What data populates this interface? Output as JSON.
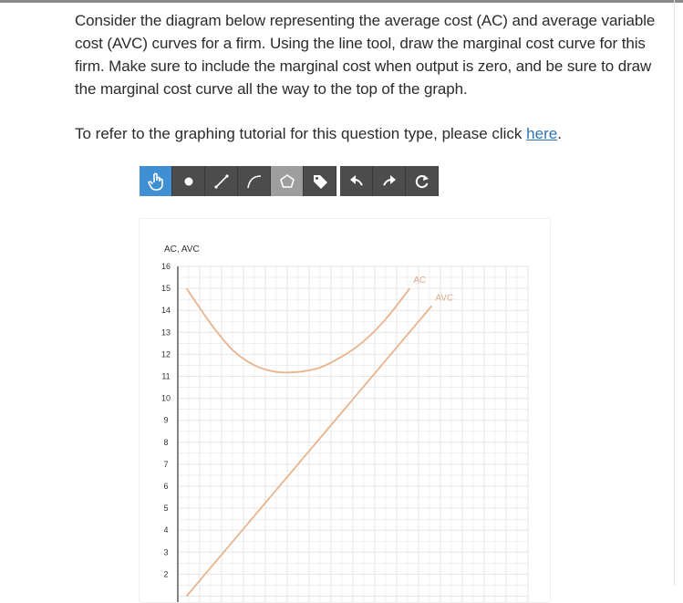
{
  "question": {
    "text": "Consider the diagram below representing the average cost (AC) and average variable cost (AVC) curves for a firm. Using the line tool, draw the marginal cost curve for this firm. Make sure to include the marginal cost when output is zero, and be sure to draw the marginal cost curve all the way to the top of the graph."
  },
  "tutorial": {
    "prefix": "To refer to the graphing tutorial for this question type, please click ",
    "link_text": "here",
    "suffix": "."
  },
  "toolbar": {
    "tools": [
      {
        "name": "pointer-tool",
        "icon": "hand-pointer-icon",
        "active": true
      },
      {
        "name": "point-tool",
        "icon": "point-icon"
      },
      {
        "name": "line-tool",
        "icon": "line-icon"
      },
      {
        "name": "curve-tool",
        "icon": "curve-icon"
      },
      {
        "name": "polygon-tool",
        "icon": "polygon-icon"
      },
      {
        "name": "label-tool",
        "icon": "tag-icon"
      },
      {
        "name": "undo-button",
        "icon": "undo-arrow-icon"
      },
      {
        "name": "redo-button",
        "icon": "redo-arrow-icon"
      },
      {
        "name": "reset-button",
        "icon": "reset-icon"
      }
    ]
  },
  "chart_data": {
    "type": "line",
    "ylabel": "AC, AVC",
    "y_ticks": [
      "16",
      "15",
      "14",
      "13",
      "12",
      "11",
      "10",
      "9",
      "8",
      "7",
      "6",
      "5",
      "4",
      "3",
      "2"
    ],
    "ylim": [
      1.5,
      16
    ],
    "xlim": [
      0,
      16
    ],
    "grid": true,
    "colors": {
      "curve": "#e8b48e",
      "grid": "#e6e6e6",
      "axis": "#333333"
    },
    "series": [
      {
        "name": "AC",
        "x": [
          0.4,
          1.5,
          2.5,
          3.5,
          4.5,
          5.5,
          6.5,
          7.5,
          8.5,
          9.5,
          10.6
        ],
        "y": [
          15.0,
          13.4,
          12.2,
          11.5,
          11.2,
          11.2,
          11.4,
          11.9,
          12.6,
          13.6,
          15.0
        ]
      },
      {
        "name": "AVC",
        "x": [
          0.4,
          11.6
        ],
        "y": [
          1.0,
          14.2
        ]
      }
    ]
  }
}
